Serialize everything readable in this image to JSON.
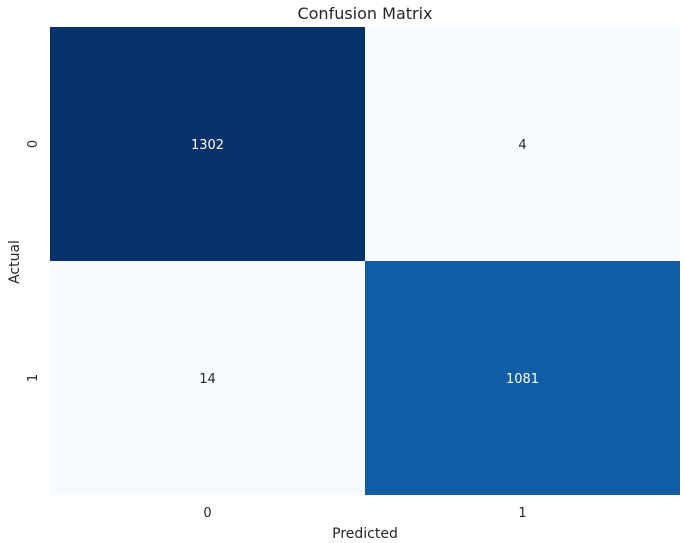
{
  "chart_data": {
    "type": "heatmap",
    "title": "Confusion Matrix",
    "xlabel": "Predicted",
    "ylabel": "Actual",
    "x_categories": [
      "0",
      "1"
    ],
    "y_categories": [
      "0",
      "1"
    ],
    "values": [
      [
        1302,
        4
      ],
      [
        14,
        1081
      ]
    ],
    "colormap": "Blues",
    "colorbar": false,
    "annotated": true
  }
}
